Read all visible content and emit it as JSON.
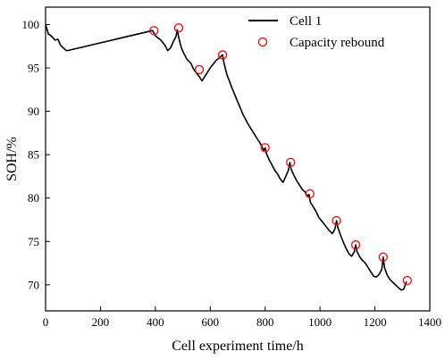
{
  "chart_data": {
    "type": "line",
    "title": "",
    "xlabel": "Cell experiment time/h",
    "ylabel": "SOH/%",
    "xlim": [
      0,
      1400
    ],
    "ylim": [
      67,
      102
    ],
    "xticks": [
      0,
      200,
      400,
      600,
      800,
      1000,
      1200,
      1400
    ],
    "yticks": [
      70,
      75,
      80,
      85,
      90,
      95,
      100
    ],
    "legend_position": "top-right",
    "series": [
      {
        "name": "Cell 1",
        "kind": "line",
        "color": "#000000",
        "x": [
          0,
          5,
          10,
          20,
          35,
          45,
          55,
          65,
          75,
          80,
          390,
          400,
          420,
          435,
          445,
          455,
          465,
          475,
          480,
          485,
          495,
          505,
          515,
          530,
          540,
          550,
          560,
          570,
          580,
          600,
          620,
          645,
          650,
          660,
          680,
          700,
          720,
          740,
          760,
          780,
          795,
          800,
          805,
          815,
          825,
          835,
          845,
          855,
          865,
          875,
          885,
          890,
          895,
          905,
          915,
          925,
          935,
          945,
          955,
          960,
          965,
          975,
          985,
          995,
          1005,
          1015,
          1025,
          1035,
          1045,
          1055,
          1060,
          1065,
          1075,
          1085,
          1095,
          1105,
          1115,
          1125,
          1130,
          1135,
          1145,
          1155,
          1165,
          1175,
          1185,
          1195,
          1205,
          1215,
          1225,
          1230,
          1235,
          1245,
          1255,
          1265,
          1275,
          1285,
          1295,
          1305,
          1315
        ],
        "y": [
          100.0,
          99.5,
          98.9,
          98.7,
          98.2,
          98.3,
          97.6,
          97.3,
          97.0,
          97.0,
          99.3,
          98.7,
          98.2,
          97.6,
          97.0,
          97.3,
          98.0,
          98.6,
          99.4,
          98.5,
          97.3,
          96.6,
          96.0,
          95.5,
          94.8,
          94.4,
          94.0,
          93.5,
          94.0,
          95.0,
          95.8,
          96.5,
          95.6,
          94.3,
          92.6,
          91.1,
          89.6,
          88.4,
          87.4,
          86.4,
          85.5,
          85.8,
          85.1,
          84.4,
          83.8,
          83.2,
          82.8,
          82.2,
          81.8,
          82.5,
          83.2,
          84.1,
          83.3,
          82.6,
          82.0,
          81.5,
          81.0,
          80.7,
          80.2,
          80.4,
          79.5,
          79.0,
          78.5,
          77.8,
          77.4,
          77.0,
          76.6,
          76.2,
          75.9,
          76.5,
          77.4,
          76.6,
          75.7,
          74.9,
          74.2,
          73.6,
          73.3,
          73.8,
          74.6,
          73.8,
          73.2,
          72.8,
          72.5,
          72.0,
          71.5,
          71.0,
          70.9,
          71.2,
          71.8,
          73.2,
          72.0,
          71.1,
          70.6,
          70.3,
          70.0,
          69.7,
          69.4,
          69.5,
          70.4
        ]
      },
      {
        "name": "Capacity rebound",
        "kind": "scatter",
        "marker": "open-circle",
        "color": "#ff0000",
        "x": [
          395,
          485,
          560,
          645,
          800,
          893,
          963,
          1060,
          1130,
          1230,
          1318
        ],
        "y": [
          99.3,
          99.6,
          94.8,
          96.5,
          85.8,
          84.1,
          80.5,
          77.4,
          74.6,
          73.2,
          70.5
        ]
      }
    ]
  }
}
